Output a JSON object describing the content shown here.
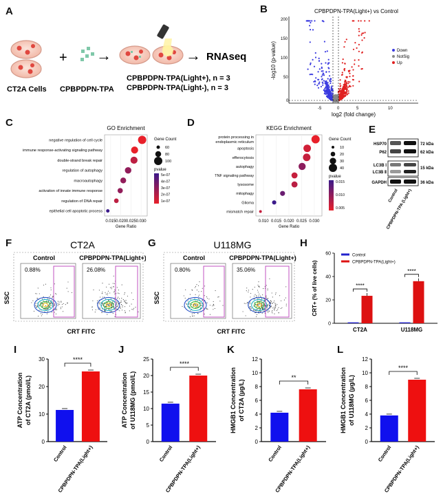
{
  "panels": {
    "A": {
      "label": "A",
      "cells_label": "CT2A Cells",
      "drug_label": "CPBPDPN-TPA",
      "output_label": "RNAseq",
      "group1": "CPBPDPN-TPA(Light+), n = 3",
      "group2": "CPBPDPN-TPA(Light-), n = 3",
      "plus": "+",
      "arrow": "→"
    },
    "B": {
      "label": "B",
      "title": "CPBPDPN-TPA(Light+) vs Control",
      "ylabel": "-log10 (p-value)",
      "xlabel": "log2 (fold change)",
      "legend": [
        "Down",
        "NotSig",
        "Up"
      ],
      "colors": {
        "down": "#3a3ae0",
        "notsig": "#888888",
        "up": "#e02020"
      }
    },
    "C": {
      "label": "C"
    },
    "D": {
      "label": "D"
    },
    "E": {
      "label": "E",
      "rows": [
        {
          "name": "HSP70",
          "kda": "72 kDa"
        },
        {
          "name": "P62",
          "kda": "62 kDa"
        },
        {
          "name": "LC3B Ⅰ",
          "kda": "15 kDa"
        },
        {
          "name": "LC3B Ⅱ",
          "kda": ""
        },
        {
          "name": "GAPDH",
          "kda": "36 kDa"
        }
      ],
      "lanes": [
        "Control",
        "CPBPDPN-TPA (Light+)"
      ]
    },
    "F": {
      "label": "F",
      "title": "CT2A",
      "sub1": "Control",
      "sub2": "CPBPDPN-TPA(Light+)",
      "pct1": "0.88%",
      "pct2": "26.08%",
      "ylabel": "SSC",
      "xlabel": "CRT FITC"
    },
    "G": {
      "label": "G",
      "title": "U118MG",
      "sub1": "Control",
      "sub2": "CPBPDPN-TPA(Light+)",
      "pct1": "0.80%",
      "pct2": "35.06%",
      "ylabel": "SSC",
      "xlabel": "CRT FITC"
    },
    "H": {
      "label": "H"
    },
    "I": {
      "label": "I"
    },
    "J": {
      "label": "J"
    },
    "K": {
      "label": "K"
    },
    "L": {
      "label": "L"
    }
  },
  "chart_data": [
    {
      "id": "C",
      "type": "scatter",
      "title": "GO Enrichment",
      "xlabel": "Gene Ratio",
      "xlim": [
        0.012,
        0.033
      ],
      "xticks": [
        0.015,
        0.02,
        0.025,
        0.03
      ],
      "xtick_labels": [
        "0.015",
        "0.020",
        "0.025",
        "0.030"
      ],
      "terms": [
        {
          "term": "negative regulation of cell cycle",
          "ratio": 0.0305,
          "count": 120,
          "pvalue": 1e-07
        },
        {
          "term": "immune response-activating signaling pathway",
          "ratio": 0.0268,
          "count": 100,
          "pvalue": 1e-07
        },
        {
          "term": "double-strand break repair",
          "ratio": 0.0265,
          "count": 100,
          "pvalue": 2e-07
        },
        {
          "term": "regulation of autophagy",
          "ratio": 0.0236,
          "count": 90,
          "pvalue": 3e-07
        },
        {
          "term": "macroautophagy",
          "ratio": 0.0212,
          "count": 80,
          "pvalue": 3e-07
        },
        {
          "term": "activation of innate immune response",
          "ratio": 0.0197,
          "count": 70,
          "pvalue": 3e-07
        },
        {
          "term": "regulation of DNA repair",
          "ratio": 0.0178,
          "count": 60,
          "pvalue": 2e-07
        },
        {
          "term": "epithelial cell apoptotic process",
          "ratio": 0.0136,
          "count": 40,
          "pvalue": 5e-07
        }
      ],
      "size_legend_title": "Gene Count",
      "size_legend": [
        60,
        80,
        100
      ],
      "color_legend_title": "pvalue",
      "color_legend": [
        "5e-07",
        "4e-07",
        "3e-07",
        "2e-07",
        "1e-07"
      ]
    },
    {
      "id": "D",
      "type": "scatter",
      "title": "KEGG Enrichment",
      "xlabel": "Gene Ratio",
      "xlim": [
        0.007,
        0.033
      ],
      "xticks": [
        0.01,
        0.015,
        0.02,
        0.025,
        0.03
      ],
      "xtick_labels": [
        "0.010",
        "0.015",
        "0.020",
        "0.025",
        "0.030"
      ],
      "terms": [
        {
          "term": "protein processing in endoplasmic reticulum",
          "ratio": 0.0305,
          "count": 40,
          "pvalue": 0.001
        },
        {
          "term": "apoptosis",
          "ratio": 0.0272,
          "count": 36,
          "pvalue": 0.003
        },
        {
          "term": "efferocytosis",
          "ratio": 0.027,
          "count": 36,
          "pvalue": 0.004
        },
        {
          "term": "autophagy",
          "ratio": 0.0252,
          "count": 34,
          "pvalue": 0.009
        },
        {
          "term": "TNF signaling pathway",
          "ratio": 0.0222,
          "count": 28,
          "pvalue": 0.004
        },
        {
          "term": "lysosome",
          "ratio": 0.0222,
          "count": 28,
          "pvalue": 0.005
        },
        {
          "term": "mitophagy",
          "ratio": 0.0175,
          "count": 22,
          "pvalue": 0.012
        },
        {
          "term": "Glioma",
          "ratio": 0.0142,
          "count": 18,
          "pvalue": 0.016
        },
        {
          "term": "mismatch repair",
          "ratio": 0.0088,
          "count": 10,
          "pvalue": 0.004
        }
      ],
      "size_legend_title": "Gene Count",
      "size_legend": [
        10,
        20,
        30,
        40
      ],
      "color_legend_title": "pvalue",
      "color_legend": [
        "0.015",
        "0.010",
        "0.005"
      ]
    },
    {
      "id": "H",
      "type": "bar",
      "ylabel": "CRT+ (% of live cells)",
      "categories": [
        "CT2A",
        "U118MG"
      ],
      "ylim": [
        0,
        60
      ],
      "yticks": [
        0,
        20,
        40,
        60
      ],
      "series": [
        {
          "name": "Control",
          "color": "#2222cc",
          "values": [
            0.8,
            0.8
          ]
        },
        {
          "name": "CPBPDPN-TPA(Light+)",
          "color": "#dd1111",
          "values": [
            23.5,
            36
          ]
        }
      ],
      "significance": [
        "****",
        "****"
      ]
    },
    {
      "id": "I",
      "type": "bar",
      "ylabel": "ATP Concentration of CT2A (pmol/L)",
      "categories": [
        "Control",
        "CPBPDPN-TPA(Light+)"
      ],
      "values": [
        11.5,
        25.5
      ],
      "ylim": [
        0,
        30
      ],
      "yticks": [
        0,
        10,
        20,
        30
      ],
      "colors": [
        "#1010ee",
        "#ee1010"
      ],
      "significance": "****"
    },
    {
      "id": "J",
      "type": "bar",
      "ylabel": "ATP Concentration of U118MG (pmol/L)",
      "categories": [
        "Control",
        "CPBPDPN-TPA(Light+)"
      ],
      "values": [
        11.5,
        20
      ],
      "ylim": [
        0,
        25
      ],
      "yticks": [
        0,
        5,
        10,
        15,
        20,
        25
      ],
      "colors": [
        "#1010ee",
        "#ee1010"
      ],
      "significance": "****"
    },
    {
      "id": "K",
      "type": "bar",
      "ylabel": "HMGB1 Concentration of CT2A (µg/L)",
      "categories": [
        "Control",
        "CPBPDPN-TPA(Light+)"
      ],
      "values": [
        4.2,
        7.6
      ],
      "ylim": [
        0,
        12
      ],
      "yticks": [
        0,
        2,
        4,
        6,
        8,
        10,
        12
      ],
      "colors": [
        "#1010ee",
        "#ee1010"
      ],
      "significance": "**"
    },
    {
      "id": "L",
      "type": "bar",
      "ylabel": "HMGB1 Concentration of U118MG (µg/L)",
      "categories": [
        "Control",
        "CPBPDPN-TPA(Light+)"
      ],
      "values": [
        3.8,
        9.0
      ],
      "ylim": [
        0,
        12
      ],
      "yticks": [
        0,
        2,
        4,
        6,
        8,
        10,
        12
      ],
      "colors": [
        "#1010ee",
        "#ee1010"
      ],
      "significance": "****"
    }
  ]
}
